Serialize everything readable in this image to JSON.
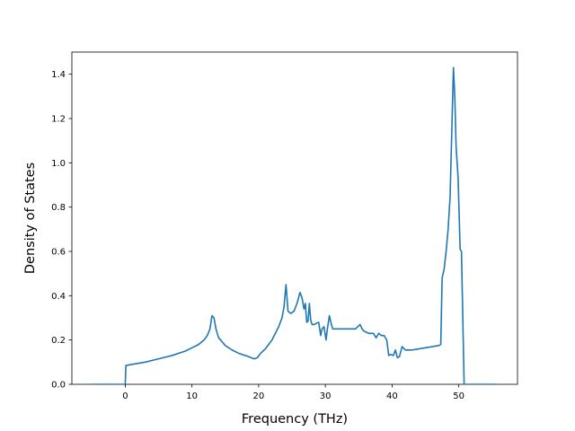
{
  "chart_data": {
    "type": "line",
    "title": "",
    "xlabel": "Frequency (THz)",
    "ylabel": "Density of States",
    "xlim": [
      -8,
      58.8
    ],
    "ylim": [
      0,
      1.5
    ],
    "x_ticks": [
      0,
      10,
      20,
      30,
      40,
      50
    ],
    "x_tick_labels": [
      "0",
      "10",
      "20",
      "30",
      "40",
      "50"
    ],
    "y_ticks": [
      0.0,
      0.2,
      0.4,
      0.6,
      0.8,
      1.0,
      1.2,
      1.4
    ],
    "y_tick_labels": [
      "0.0",
      "0.2",
      "0.4",
      "0.6",
      "0.8",
      "1.0",
      "1.2",
      "1.4"
    ],
    "grid": false,
    "line_color": "#1f77b4",
    "series": [
      {
        "x": [
          -5.2,
          0.0,
          0.1,
          1.0,
          3.0,
          5.0,
          7.0,
          9.0,
          10.0,
          11.0,
          11.8,
          12.3,
          12.7,
          13.0,
          13.3,
          13.6,
          14.0,
          15.0,
          16.0,
          17.0,
          18.0,
          18.9,
          19.3,
          19.8,
          20.3,
          21.0,
          22.0,
          23.0,
          23.5,
          23.8,
          24.1,
          24.4,
          24.8,
          25.3,
          25.8,
          26.2,
          26.5,
          26.8,
          27.0,
          27.2,
          27.4,
          27.6,
          27.8,
          28.0,
          28.3,
          28.6,
          29.0,
          29.3,
          29.5,
          29.8,
          30.1,
          30.3,
          30.6,
          30.9,
          31.1,
          31.4,
          31.8,
          32.5,
          33.5,
          34.5,
          35.2,
          35.5,
          35.8,
          36.5,
          37.2,
          37.6,
          38.0,
          38.4,
          38.8,
          39.2,
          39.5,
          39.8,
          40.2,
          40.5,
          40.8,
          41.1,
          41.5,
          42.0,
          43.0,
          44.0,
          45.0,
          46.0,
          47.0,
          47.3,
          47.5,
          47.8,
          48.1,
          48.4,
          48.7,
          49.0,
          49.2,
          49.4,
          49.6,
          49.9,
          50.2,
          50.4,
          50.8,
          51.0,
          55.8
        ],
        "y": [
          0.0,
          0.0,
          0.085,
          0.09,
          0.1,
          0.115,
          0.13,
          0.15,
          0.165,
          0.18,
          0.2,
          0.22,
          0.25,
          0.31,
          0.3,
          0.25,
          0.21,
          0.175,
          0.155,
          0.14,
          0.13,
          0.12,
          0.115,
          0.12,
          0.14,
          0.16,
          0.2,
          0.26,
          0.3,
          0.35,
          0.45,
          0.33,
          0.32,
          0.33,
          0.37,
          0.415,
          0.39,
          0.34,
          0.365,
          0.28,
          0.285,
          0.365,
          0.29,
          0.27,
          0.27,
          0.275,
          0.28,
          0.22,
          0.25,
          0.26,
          0.2,
          0.25,
          0.31,
          0.27,
          0.25,
          0.25,
          0.25,
          0.25,
          0.25,
          0.25,
          0.27,
          0.25,
          0.24,
          0.23,
          0.23,
          0.21,
          0.23,
          0.22,
          0.22,
          0.2,
          0.13,
          0.135,
          0.13,
          0.155,
          0.12,
          0.125,
          0.17,
          0.155,
          0.155,
          0.16,
          0.165,
          0.17,
          0.175,
          0.18,
          0.48,
          0.52,
          0.6,
          0.7,
          0.85,
          1.2,
          1.43,
          1.3,
          1.07,
          0.93,
          0.61,
          0.6,
          0.0,
          0.0,
          0.0
        ]
      }
    ]
  }
}
